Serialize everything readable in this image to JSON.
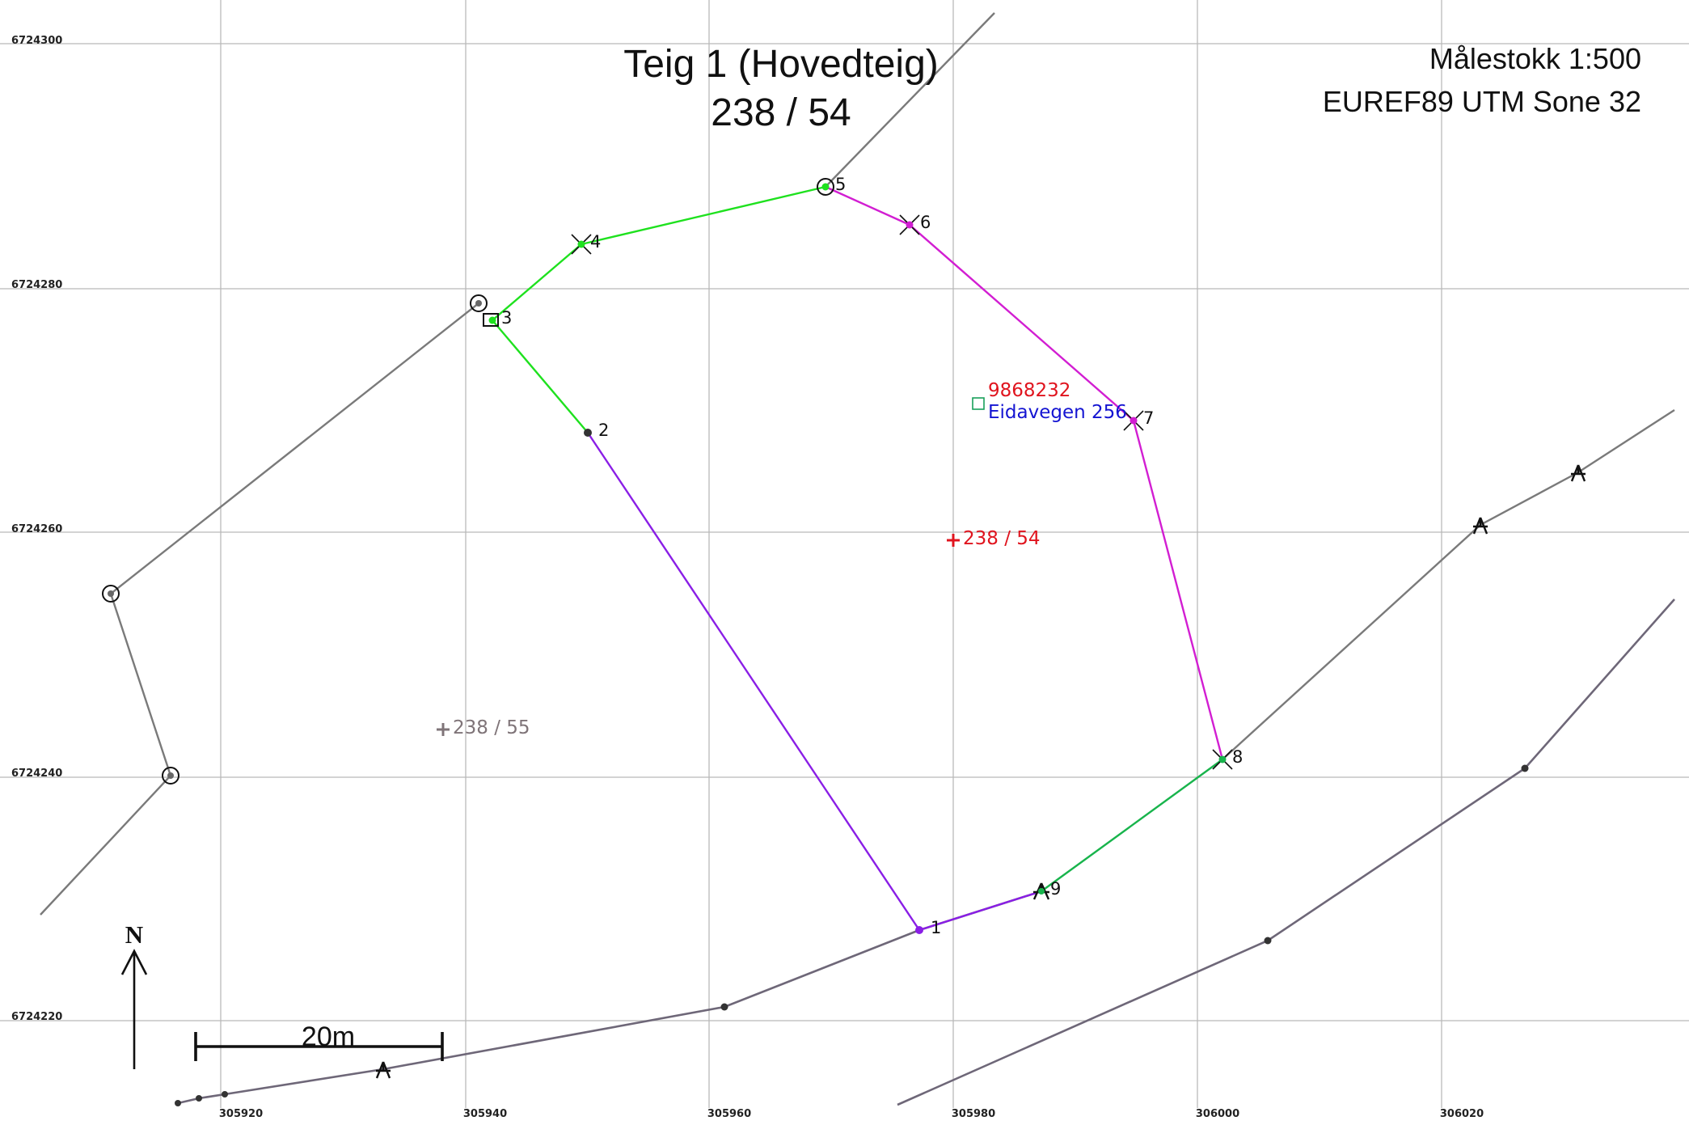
{
  "title": {
    "line1": "Teig 1 (Hovedteig)",
    "line2": "238 / 54"
  },
  "info": {
    "scale": "Målestokk 1:500",
    "crs": "EUREF89 UTM Sone 32"
  },
  "north_arrow": {
    "label": "N"
  },
  "scale_bar": {
    "label": "20m"
  },
  "grid": {
    "x_ticks": [
      "305920",
      "305940",
      "305960",
      "305980",
      "306000",
      "306020"
    ],
    "y_ticks": [
      "6724300",
      "6724280",
      "6724260",
      "6724240",
      "6724220"
    ]
  },
  "colors": {
    "green": "#1ee11e",
    "magenta": "#d21ed2",
    "purple": "#8a1ee6",
    "teal_green": "#18b44c",
    "road_gray": "#7a7a7a",
    "label_red": "#e0141e",
    "label_blue": "#1414d2",
    "label_gray": "#7f7478"
  },
  "boundary_points": [
    {
      "label": "1",
      "x": 305976.3,
      "y": 6724227.4,
      "symbol": "dot"
    },
    {
      "label": "2",
      "x": 305949.0,
      "y": 6724268.2,
      "symbol": "dot"
    },
    {
      "label": "3",
      "x": 305942.2,
      "y": 6724277.3,
      "symbol": "square"
    },
    {
      "label": "4",
      "x": 305949.5,
      "y": 6724283.5,
      "symbol": "cross"
    },
    {
      "label": "5",
      "x": 305968.4,
      "y": 6724288.2,
      "symbol": "circle"
    },
    {
      "label": "6",
      "x": 305975.3,
      "y": 6724285.1,
      "symbol": "cross"
    },
    {
      "label": "7",
      "x": 305994.4,
      "y": 6724269.1,
      "symbol": "cross"
    },
    {
      "label": "8",
      "x": 306001.6,
      "y": 6724241.6,
      "symbol": "cross"
    },
    {
      "label": "9",
      "x": 305986.5,
      "y": 6724230.8,
      "symbol": "tripod"
    }
  ],
  "address": {
    "id": "9868232",
    "street": "Eidavegen 256",
    "x": 305981.9,
    "y": 6724270.5
  },
  "parcels": [
    {
      "label": "238 / 54",
      "x": 305979.8,
      "y": 6724259.3,
      "color": "#e0141e"
    },
    {
      "label": "238 / 55",
      "x": 305936.8,
      "y": 6724243.9,
      "color": "#7f7478"
    }
  ]
}
